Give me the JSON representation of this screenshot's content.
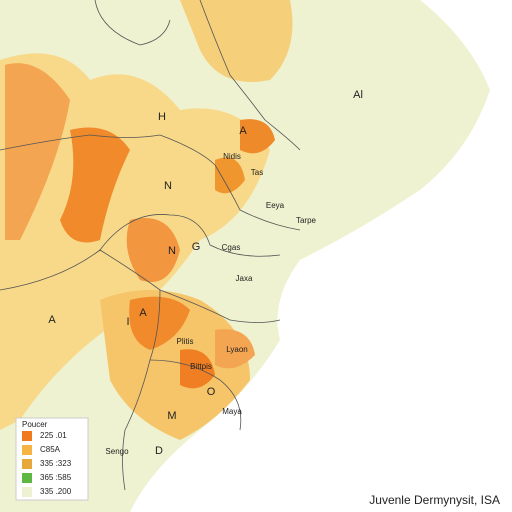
{
  "map": {
    "labels": [
      {
        "text": "H"
      },
      {
        "text": "A"
      },
      {
        "text": "Al"
      },
      {
        "text": "Nidis"
      },
      {
        "text": "Tas"
      },
      {
        "text": "N"
      },
      {
        "text": "Eeya"
      },
      {
        "text": "Tarpe"
      },
      {
        "text": "N"
      },
      {
        "text": "G"
      },
      {
        "text": "Cgas"
      },
      {
        "text": "Jaxa"
      },
      {
        "text": "A"
      },
      {
        "text": "I"
      },
      {
        "text": "A"
      },
      {
        "text": "Plitis"
      },
      {
        "text": "Lyaon"
      },
      {
        "text": "Bittpis"
      },
      {
        "text": "O"
      },
      {
        "text": "M"
      },
      {
        "text": "Maya"
      },
      {
        "text": "D"
      },
      {
        "text": "Sengo"
      }
    ],
    "legend": {
      "title": "Poucer",
      "items": [
        {
          "label": "225 .01",
          "color": "#f07a1e"
        },
        {
          "label": "C85A",
          "color": "#f5b443"
        },
        {
          "label": "335 :323",
          "color": "#e6a83a"
        },
        {
          "label": "365 :585",
          "color": "#5cb840"
        },
        {
          "label": "335 .200",
          "color": "#eef1d2"
        }
      ]
    },
    "footer": "Juvenle Dermynysit, ISA"
  }
}
